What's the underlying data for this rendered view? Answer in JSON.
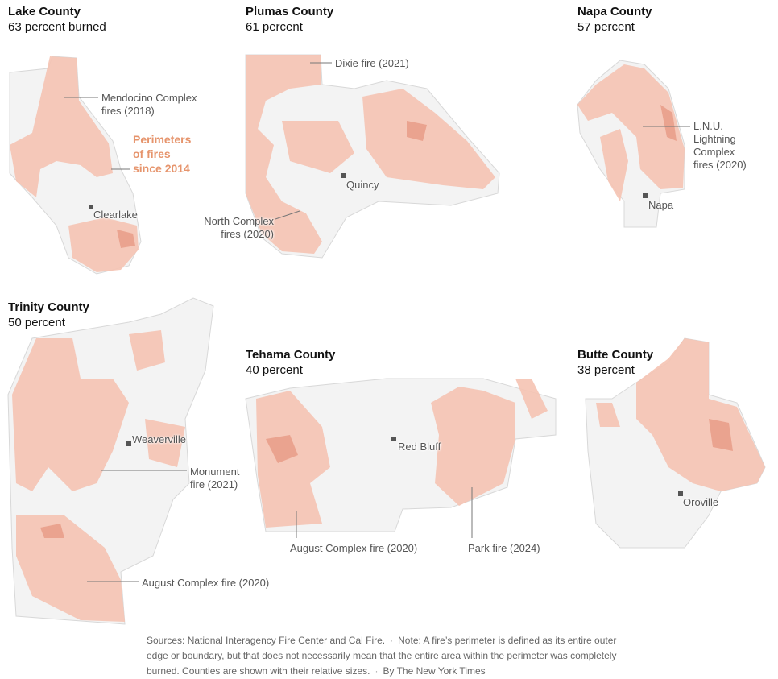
{
  "panels": [
    {
      "title": "Lake County",
      "subtitle": "63 percent burned",
      "labels": [
        "Mendocino Complex\nfires (2018)",
        "Clearlake"
      ],
      "annotation": "Perimeters\nof fires\nsince 2014"
    },
    {
      "title": "Plumas County",
      "subtitle": "61 percent",
      "labels": [
        "Dixie fire (2021)",
        "Quincy",
        "North Complex\nfires (2020)"
      ]
    },
    {
      "title": "Napa County",
      "subtitle": "57 percent",
      "labels": [
        "L.N.U.\nLightning\nComplex\nfires (2020)",
        "Napa"
      ]
    },
    {
      "title": "Trinity County",
      "subtitle": "50 percent",
      "labels": [
        "Weaverville",
        "Monument\nfire (2021)",
        "August Complex fire (2020)"
      ]
    },
    {
      "title": "Tehama County",
      "subtitle": "40 percent",
      "labels": [
        "Red Bluff",
        "August Complex fire (2020)",
        "Park fire (2024)"
      ]
    },
    {
      "title": "Butte County",
      "subtitle": "38 percent",
      "labels": [
        "Oroville"
      ]
    }
  ],
  "footer": {
    "sources": "Sources: National Interagency Fire Center and Cal Fire.",
    "note": "Note: A fire’s perimeter is defined as its entire outer edge or boundary, but that does not necessarily mean that the entire area within the perimeter was completely burned. Counties are shown with their relative sizes.",
    "credit": "By The New York Times"
  }
}
